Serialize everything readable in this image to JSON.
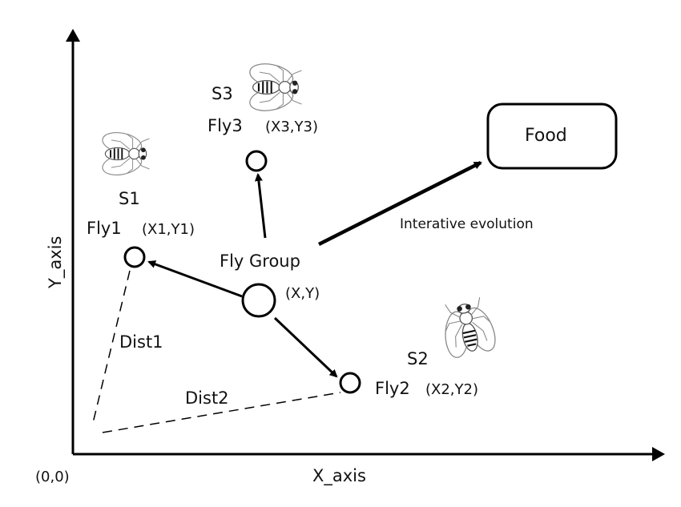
{
  "axes": {
    "x_label": "X_axis",
    "y_label": "Y_axis",
    "origin_label": "(0,0)"
  },
  "group": {
    "label": "Fly Group",
    "coord": "(X,Y)"
  },
  "flies": [
    {
      "state": "S1",
      "name": "Fly1",
      "coord": "(X1,Y1)"
    },
    {
      "state": "S2",
      "name": "Fly2",
      "coord": "(X2,Y2)"
    },
    {
      "state": "S3",
      "name": "Fly3",
      "coord": "(X3,Y3)"
    }
  ],
  "distances": {
    "dist1": "Dist1",
    "dist2": "Dist2"
  },
  "food": {
    "label": "Food"
  },
  "evolution": {
    "label": "Interative evolution"
  },
  "icons": [
    "fruit-fly-icon"
  ],
  "colors": {
    "stroke": "#000000",
    "background": "#ffffff",
    "fly_outline": "#8a8a8a"
  }
}
